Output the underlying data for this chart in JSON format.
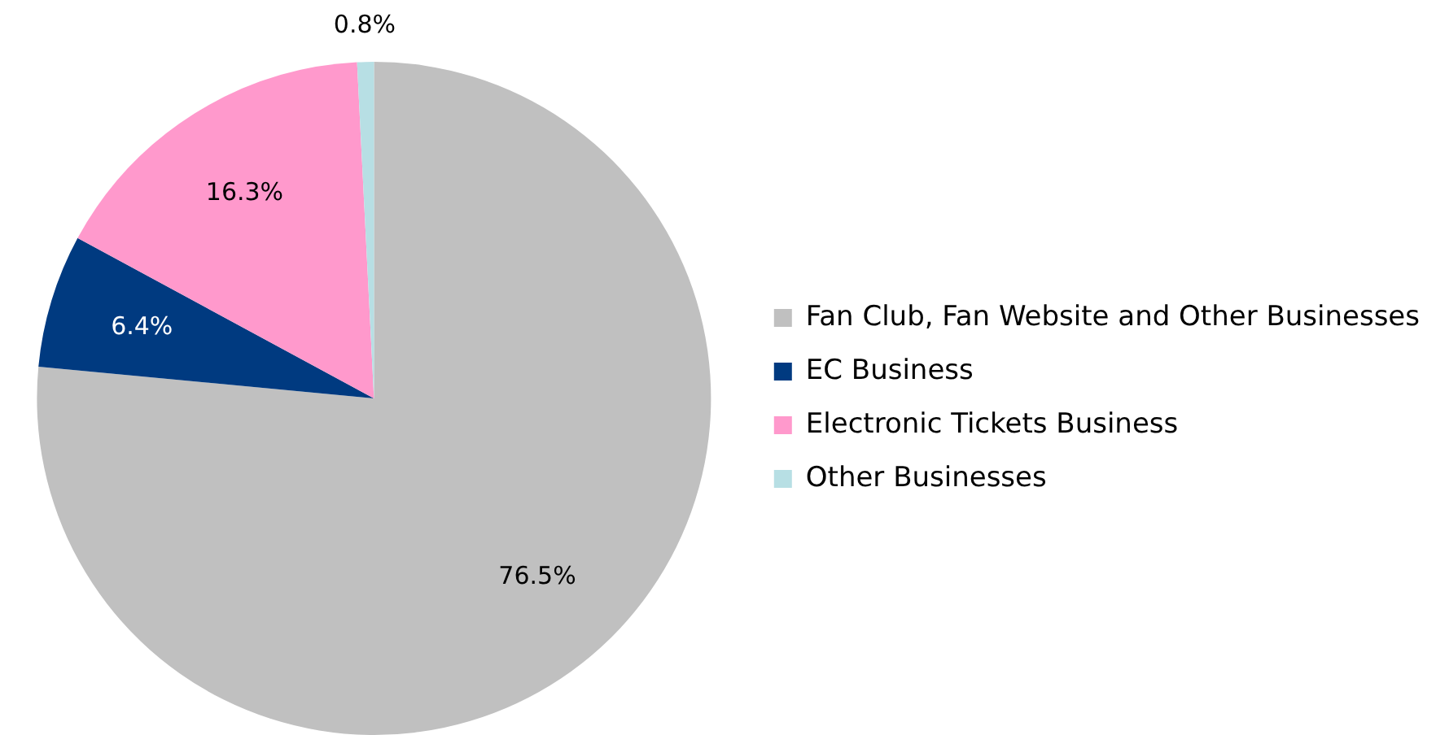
{
  "chart_data": {
    "type": "pie",
    "categories": [
      "Fan Club, Fan Website and Other Businesses",
      "EC Business",
      "Electronic Tickets Business",
      "Other Businesses"
    ],
    "values": [
      76.5,
      6.4,
      16.3,
      0.8
    ],
    "colors": [
      "#c0c0c0",
      "#003a80",
      "#ff99cc",
      "#b7dfe4"
    ],
    "value_labels": [
      "76.5%",
      "6.4%",
      "16.3%",
      "0.8%"
    ],
    "legend": "right"
  }
}
